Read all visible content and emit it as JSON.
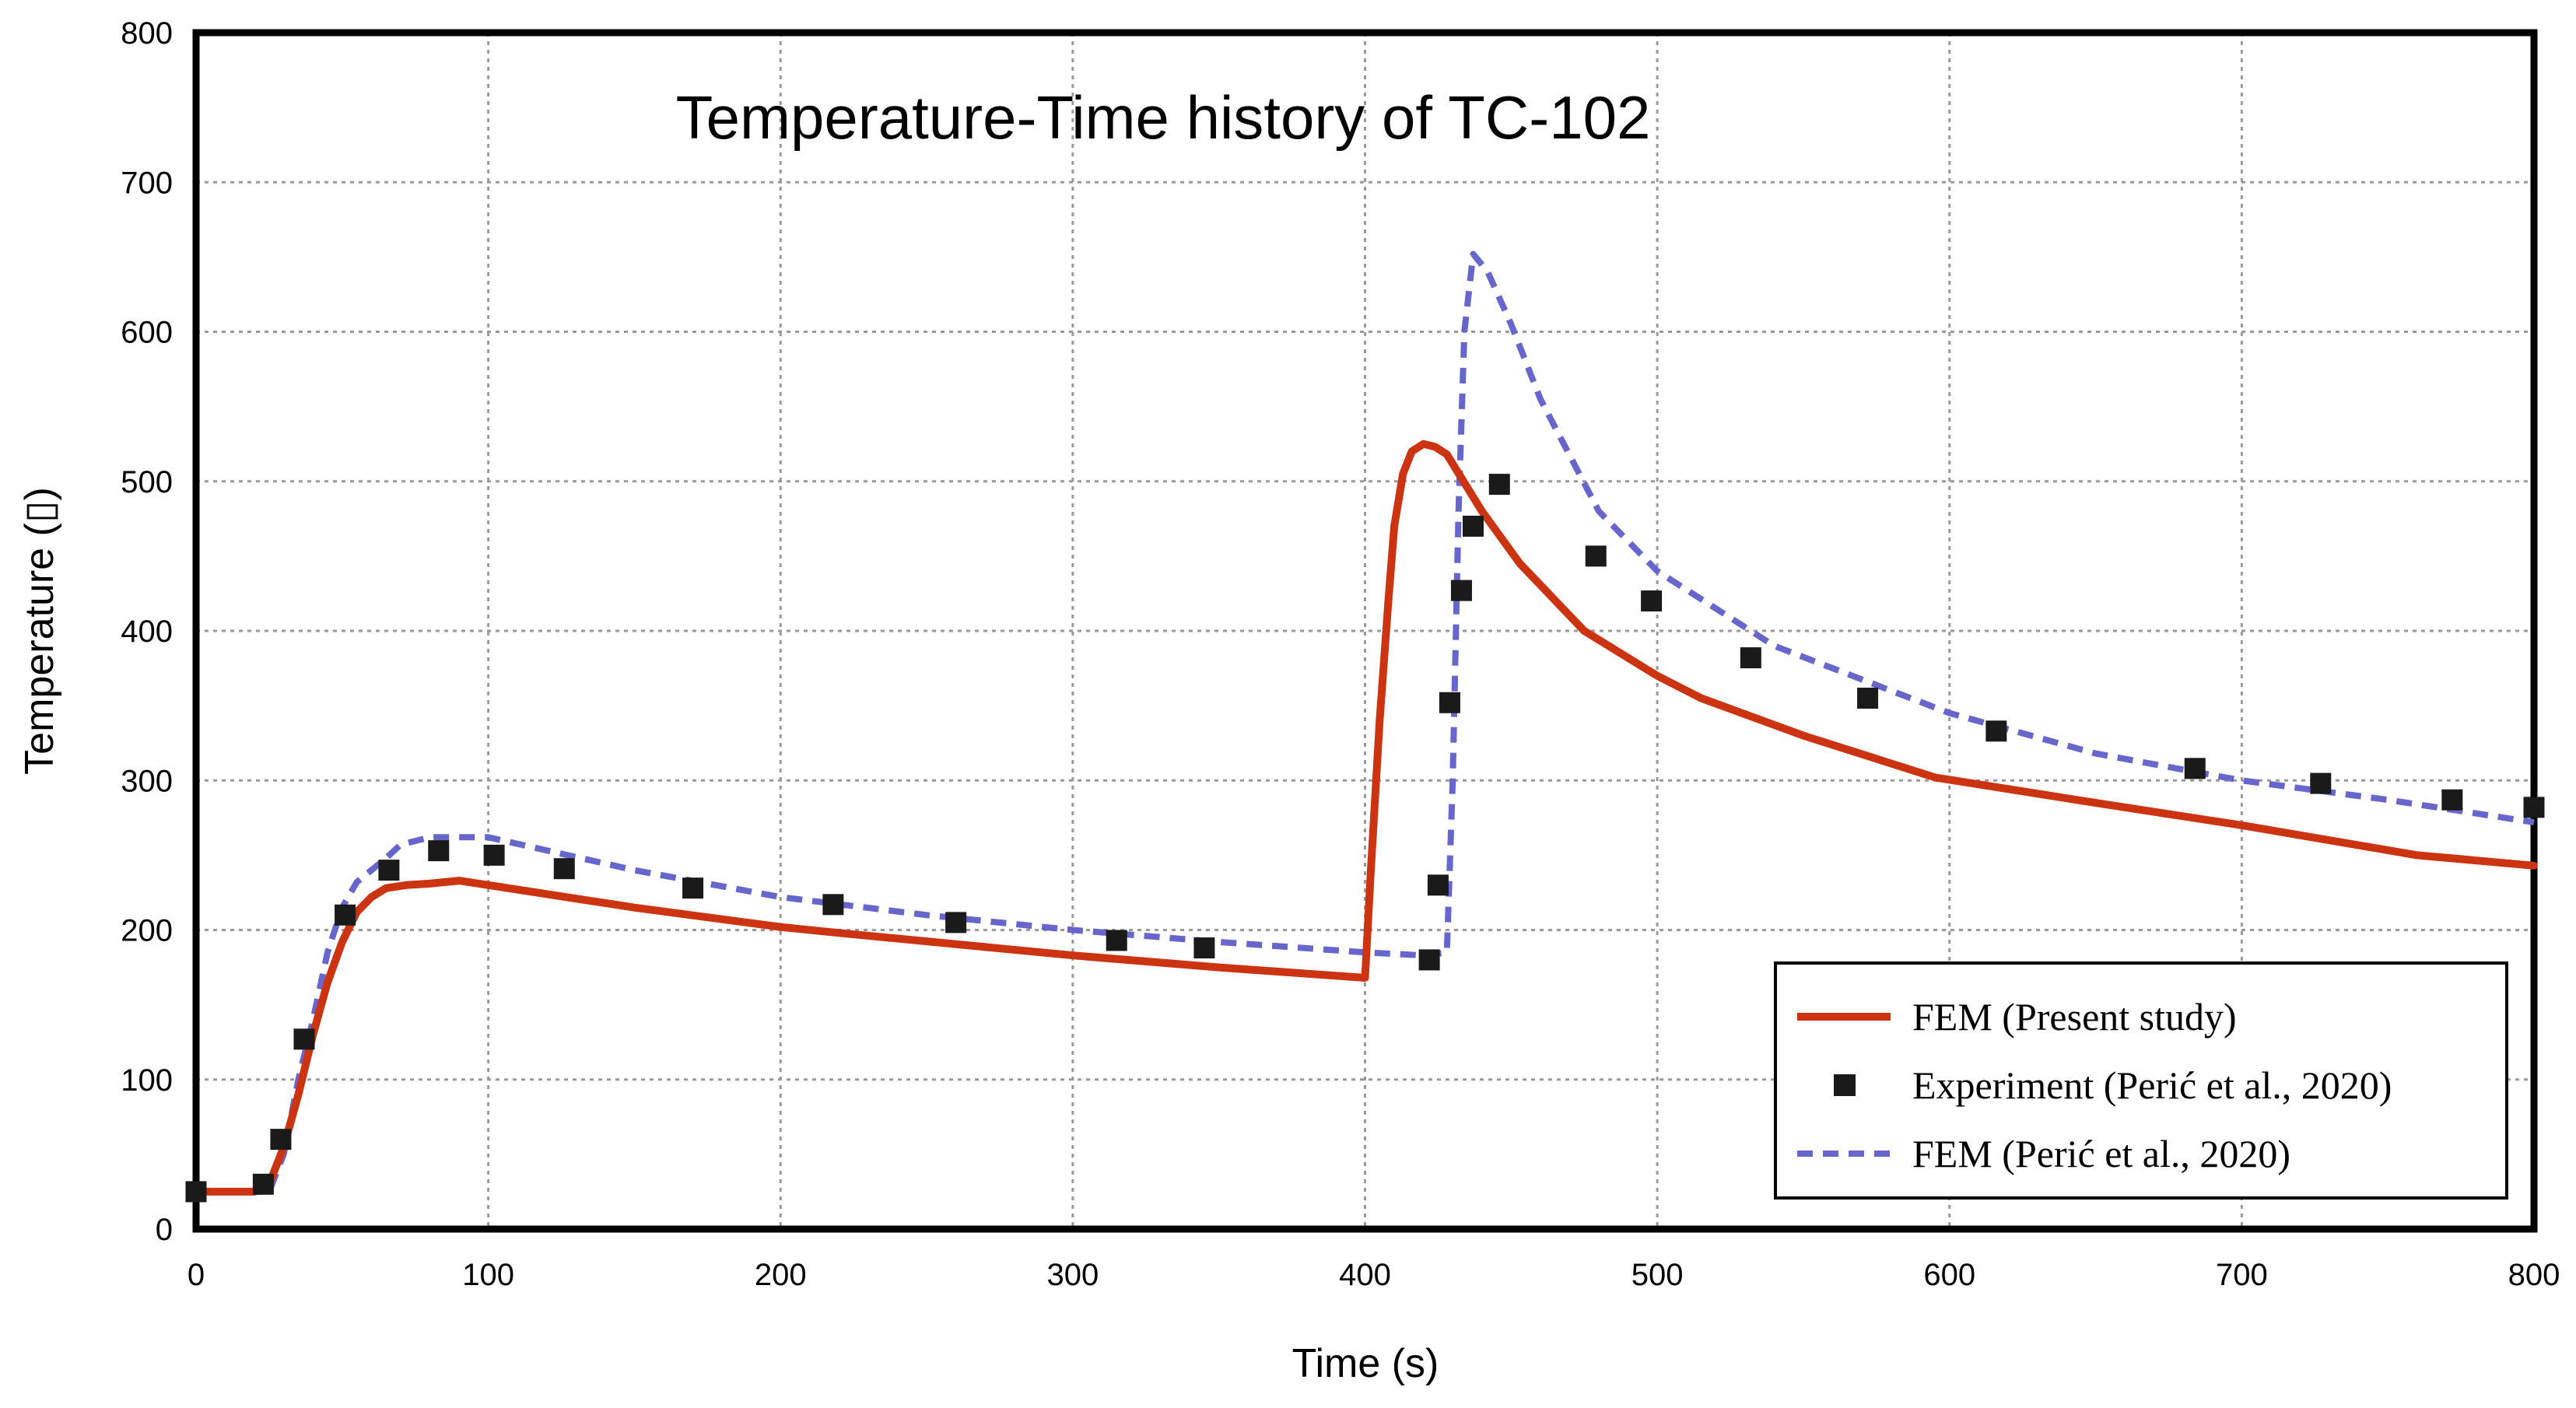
{
  "chart_data": {
    "type": "line",
    "title": "Temperature-Time history of TC-102",
    "xlabel": "Time (s)",
    "ylabel": "Temperature (▯)",
    "xlim": [
      0,
      800
    ],
    "ylim": [
      0,
      800
    ],
    "xticks": [
      0,
      100,
      200,
      300,
      400,
      500,
      600,
      700,
      800
    ],
    "yticks": [
      0,
      100,
      200,
      300,
      400,
      500,
      600,
      700,
      800
    ],
    "grid": true,
    "legend_position": "bottom-right",
    "colors": {
      "fem_present": "#cc3311",
      "experiment": "#1a1a1a",
      "fem_peric": "#6666cc",
      "grid": "#9a9a9a"
    },
    "series": [
      {
        "name": "FEM (Present study)",
        "style": "solid-line",
        "x": [
          0,
          20,
          25,
          30,
          35,
          40,
          45,
          50,
          55,
          60,
          65,
          72,
          80,
          90,
          100,
          150,
          200,
          220,
          300,
          350,
          400,
          402,
          405,
          408,
          410,
          413,
          416,
          420,
          424,
          428,
          440,
          453,
          475,
          500,
          515,
          550,
          595,
          650,
          700,
          760,
          800
        ],
        "values": [
          25,
          25,
          30,
          55,
          90,
          130,
          165,
          192,
          212,
          222,
          228,
          230,
          231,
          233,
          230,
          215,
          202,
          198,
          183,
          175,
          168,
          240,
          340,
          420,
          470,
          505,
          520,
          525,
          523,
          518,
          480,
          445,
          400,
          370,
          355,
          330,
          302,
          285,
          270,
          250,
          243
        ]
      },
      {
        "name": "Experiment (Perić et al., 2020)",
        "style": "square-markers",
        "x": [
          0,
          23,
          29,
          37,
          51,
          66,
          83,
          102,
          126,
          170,
          218,
          260,
          315,
          345,
          422,
          425,
          429,
          433,
          437,
          446,
          479,
          498,
          532,
          572,
          616,
          684,
          727,
          772,
          800
        ],
        "values": [
          25,
          30,
          60,
          127,
          210,
          240,
          253,
          250,
          241,
          228,
          217,
          205,
          193,
          188,
          180,
          230,
          352,
          427,
          470,
          498,
          450,
          420,
          382,
          355,
          333,
          308,
          298,
          287,
          282
        ]
      },
      {
        "name": "FEM (Perić et al., 2020)",
        "style": "dashed-line",
        "x": [
          0,
          25,
          30,
          35,
          40,
          45,
          50,
          55,
          60,
          65,
          70,
          80,
          90,
          100,
          150,
          200,
          250,
          300,
          350,
          400,
          420,
          428,
          430,
          432,
          434,
          437,
          442,
          450,
          460,
          480,
          500,
          540,
          600,
          650,
          700,
          750,
          800
        ],
        "values": [
          25,
          25,
          50,
          100,
          140,
          185,
          215,
          232,
          240,
          248,
          257,
          262,
          262,
          262,
          240,
          222,
          210,
          200,
          192,
          185,
          183,
          185,
          300,
          480,
          600,
          652,
          640,
          605,
          555,
          480,
          440,
          390,
          345,
          318,
          300,
          287,
          272
        ]
      }
    ]
  }
}
